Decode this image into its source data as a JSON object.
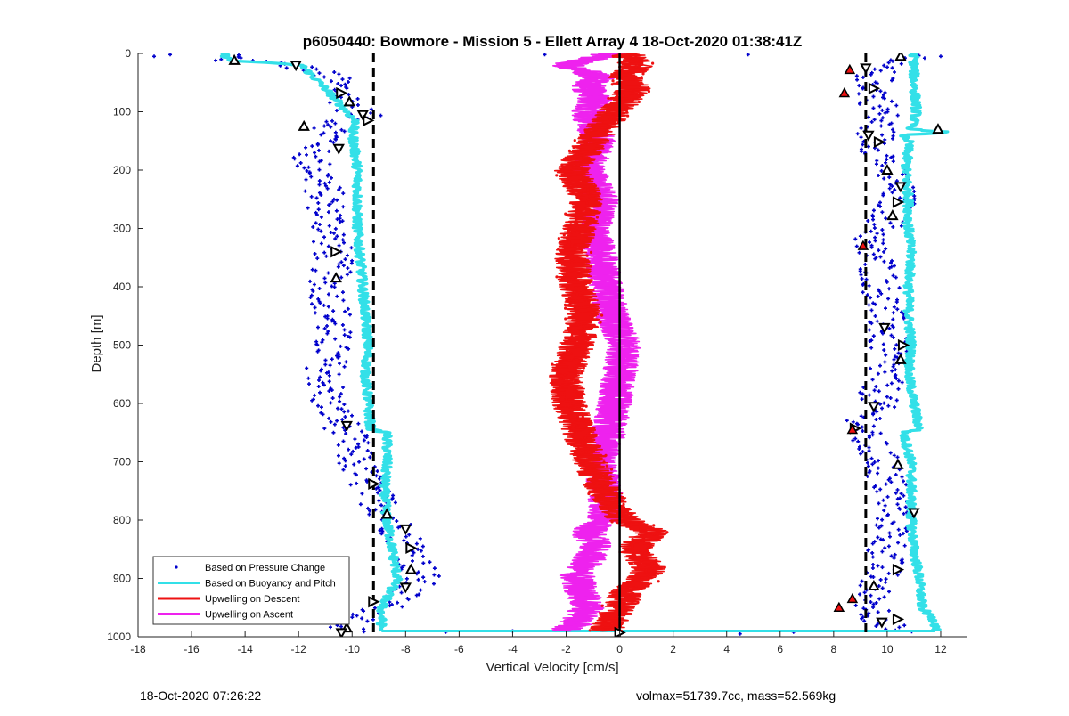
{
  "footer": {
    "timestamp": "18-Oct-2020 07:26:22",
    "stats": "volmax=51739.7cc, mass=52.569kg"
  },
  "chart_data": {
    "type": "scatter",
    "title": "p6050440: Bowmore - Mission 5 - Ellett Array 4 18-Oct-2020 01:38:41Z",
    "xlabel": "Vertical Velocity [cm/s]",
    "ylabel": "Depth [m]",
    "xlim": [
      -18,
      13
    ],
    "ylim": [
      0,
      1000
    ],
    "y_reversed": true,
    "xticks": [
      -18,
      -16,
      -14,
      -12,
      -10,
      -8,
      -6,
      -4,
      -2,
      0,
      2,
      4,
      6,
      8,
      10,
      12
    ],
    "yticks": [
      0,
      100,
      200,
      300,
      400,
      500,
      600,
      700,
      800,
      900,
      1000
    ],
    "grid": false,
    "legend_position": "bottom-left",
    "reference_lines": [
      {
        "type": "vertical",
        "x": 0,
        "style": "solid",
        "color": "#000000"
      },
      {
        "type": "vertical",
        "x": -9.2,
        "style": "dashed",
        "color": "#000000"
      },
      {
        "type": "vertical",
        "x": 9.2,
        "style": "dashed",
        "color": "#000000"
      }
    ],
    "series": [
      {
        "name": "Based on Pressure Change",
        "kind": "points",
        "color": "#0000cc",
        "profiles": [
          {
            "depth": [
              0,
              10,
              20,
              35,
              50,
              70,
              90,
              110,
              120,
              150,
              180,
              210,
              250,
              300,
              350,
              400,
              450,
              500,
              550,
              600,
              650,
              700,
              750,
              800,
              850,
              900,
              950,
              990
            ],
            "x": [
              -14.5,
              -14.4,
              -12.3,
              -11.0,
              -10.6,
              -10.4,
              -10.0,
              -9.6,
              -10.6,
              -10.9,
              -11.6,
              -11.2,
              -11.0,
              -10.8,
              -10.7,
              -10.9,
              -10.7,
              -10.8,
              -11.0,
              -10.9,
              -10.2,
              -9.9,
              -9.3,
              -8.5,
              -7.8,
              -7.4,
              -8.8,
              -10.3
            ]
          },
          {
            "depth": [
              0,
              10,
              25,
              50,
              70,
              100,
              130,
              150,
              200,
              250,
              280,
              300,
              330,
              350,
              400,
              450,
              500,
              550,
              600,
              650,
              700,
              750,
              800,
              850,
              900,
              930,
              960,
              990
            ],
            "x": [
              10.6,
              10.2,
              9.6,
              9.5,
              9.6,
              9.8,
              9.6,
              9.6,
              10.1,
              10.4,
              10.1,
              9.8,
              9.2,
              9.6,
              9.8,
              9.9,
              10.0,
              9.9,
              9.6,
              9.0,
              9.8,
              10.1,
              10.3,
              10.0,
              9.7,
              9.3,
              9.6,
              10.2
            ]
          }
        ],
        "scattered_points": [
          {
            "x": -17.4,
            "y": 5
          },
          {
            "x": -16.8,
            "y": 2
          },
          {
            "x": -15.1,
            "y": 12
          },
          {
            "x": -2.8,
            "y": 2
          },
          {
            "x": 4.8,
            "y": 2
          },
          {
            "x": 12.0,
            "y": 5
          },
          {
            "x": 11.4,
            "y": 8
          },
          {
            "x": -6.5,
            "y": 992
          },
          {
            "x": -4.0,
            "y": 990
          },
          {
            "x": 4.5,
            "y": 995
          },
          {
            "x": 6.5,
            "y": 992
          }
        ]
      },
      {
        "name": "Based on Buoyancy and Pitch",
        "kind": "line",
        "color": "#33e0e8",
        "profiles": [
          {
            "depth": [
              0,
              12,
              20,
              60,
              100,
              120,
              130,
              200,
              250,
              300,
              350,
              400,
              450,
              500,
              550,
              600,
              645,
              650,
              700,
              750,
              800,
              850,
              900,
              950,
              990
            ],
            "x": [
              -14.8,
              -14.6,
              -11.9,
              -11.0,
              -10.2,
              -9.8,
              -10.0,
              -9.8,
              -9.8,
              -9.8,
              -9.7,
              -9.6,
              -9.5,
              -9.4,
              -9.5,
              -9.4,
              -9.3,
              -8.7,
              -8.7,
              -8.8,
              -8.7,
              -8.5,
              -8.3,
              -8.9,
              -8.9
            ]
          },
          {
            "depth": [
              0,
              50,
              100,
              130,
              135,
              140,
              150,
              200,
              250,
              300,
              350,
              400,
              450,
              500,
              550,
              600,
              645,
              650,
              700,
              750,
              800,
              850,
              900,
              950,
              975,
              990
            ],
            "x": [
              11.0,
              11.0,
              11.1,
              10.9,
              12.3,
              10.6,
              10.8,
              10.7,
              10.8,
              10.8,
              10.9,
              10.8,
              10.8,
              10.9,
              10.8,
              11.0,
              11.2,
              10.6,
              10.9,
              10.9,
              10.9,
              11.0,
              11.2,
              11.3,
              11.8,
              11.8
            ]
          }
        ],
        "bottom_spike": {
          "depth": 990,
          "x_from": -8.9,
          "x_to": 11.8
        }
      },
      {
        "name": "Upwelling on Descent",
        "kind": "line",
        "color": "#ee1111",
        "profiles": [
          {
            "depth": [
              0,
              20,
              40,
              60,
              80,
              100,
              150,
              200,
              250,
              300,
              350,
              400,
              450,
              500,
              550,
              600,
              650,
              700,
              750,
              800,
              820,
              850,
              880,
              900,
              920,
              950,
              980,
              990
            ],
            "x": [
              0.3,
              0.6,
              0.2,
              0.5,
              0.2,
              -0.2,
              -1.0,
              -1.8,
              -1.2,
              -1.5,
              -1.8,
              -1.6,
              -1.3,
              -1.6,
              -2.0,
              -1.9,
              -1.5,
              -1.1,
              -0.6,
              0.2,
              1.2,
              0.5,
              1.1,
              0.9,
              0.3,
              0.0,
              -0.4,
              -0.5
            ]
          }
        ]
      },
      {
        "name": "Upwelling on Ascent",
        "kind": "line",
        "color": "#ee22ee",
        "profiles": [
          {
            "depth": [
              0,
              20,
              40,
              60,
              80,
              100,
              150,
              200,
              250,
              300,
              350,
              400,
              450,
              500,
              550,
              600,
              650,
              700,
              750,
              800,
              820,
              850,
              880,
              900,
              950,
              980,
              990
            ],
            "x": [
              -0.3,
              -2.0,
              -0.8,
              -1.2,
              -0.9,
              -1.2,
              -0.8,
              -1.2,
              -0.6,
              -1.0,
              -0.7,
              -0.5,
              -0.3,
              0.2,
              0.0,
              -0.2,
              -0.4,
              -0.8,
              -0.5,
              -0.6,
              -1.2,
              -0.8,
              -1.4,
              -1.6,
              -1.2,
              -1.7,
              -2.2
            ]
          }
        ]
      },
      {
        "name": "",
        "kind": "triangle-markers",
        "color": "#000000",
        "points": [
          {
            "x": -14.4,
            "y": 12
          },
          {
            "x": -12.1,
            "y": 20
          },
          {
            "x": -10.4,
            "y": 68
          },
          {
            "x": -10.1,
            "y": 83
          },
          {
            "x": -9.6,
            "y": 105
          },
          {
            "x": -9.4,
            "y": 115
          },
          {
            "x": -11.8,
            "y": 125
          },
          {
            "x": -10.5,
            "y": 163
          },
          {
            "x": -10.6,
            "y": 340
          },
          {
            "x": -10.6,
            "y": 385
          },
          {
            "x": -10.2,
            "y": 638
          },
          {
            "x": -9.2,
            "y": 738
          },
          {
            "x": -8.7,
            "y": 790
          },
          {
            "x": -8.0,
            "y": 815
          },
          {
            "x": -7.8,
            "y": 848
          },
          {
            "x": -7.8,
            "y": 885
          },
          {
            "x": -8.0,
            "y": 915
          },
          {
            "x": -9.2,
            "y": 940
          },
          {
            "x": -10.2,
            "y": 985
          },
          {
            "x": -10.4,
            "y": 993
          },
          {
            "x": 0.0,
            "y": 993
          },
          {
            "x": 10.5,
            "y": 5
          },
          {
            "x": 9.2,
            "y": 25
          },
          {
            "x": 9.5,
            "y": 60
          },
          {
            "x": 11.9,
            "y": 130
          },
          {
            "x": 9.3,
            "y": 140
          },
          {
            "x": 9.7,
            "y": 152
          },
          {
            "x": 10.0,
            "y": 200
          },
          {
            "x": 10.5,
            "y": 228
          },
          {
            "x": 10.4,
            "y": 255
          },
          {
            "x": 10.2,
            "y": 278
          },
          {
            "x": 9.9,
            "y": 470
          },
          {
            "x": 10.6,
            "y": 500
          },
          {
            "x": 10.5,
            "y": 525
          },
          {
            "x": 9.5,
            "y": 605
          },
          {
            "x": 8.8,
            "y": 643
          },
          {
            "x": 10.4,
            "y": 705
          },
          {
            "x": 11.0,
            "y": 787
          },
          {
            "x": 10.4,
            "y": 885
          },
          {
            "x": 9.5,
            "y": 913
          },
          {
            "x": 9.8,
            "y": 975
          },
          {
            "x": 10.4,
            "y": 970
          }
        ]
      },
      {
        "name": "",
        "kind": "red-markers",
        "color": "#ee1111",
        "points": [
          {
            "x": 8.6,
            "y": 28
          },
          {
            "x": 8.4,
            "y": 68
          },
          {
            "x": 9.1,
            "y": 330
          },
          {
            "x": 8.7,
            "y": 645
          },
          {
            "x": 8.7,
            "y": 935
          },
          {
            "x": 8.2,
            "y": 950
          }
        ]
      }
    ],
    "legend": [
      "Based on Pressure Change",
      "Based on Buoyancy and Pitch",
      "Upwelling on Descent",
      "Upwelling on Ascent"
    ]
  }
}
